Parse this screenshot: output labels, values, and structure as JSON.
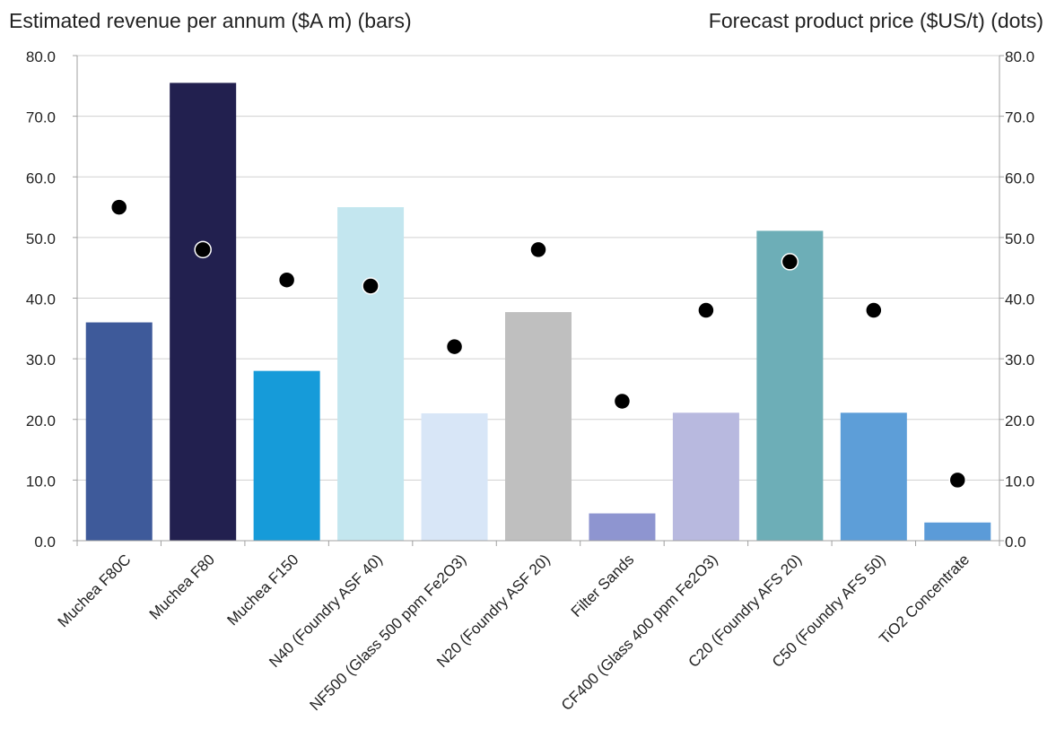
{
  "chart_data": {
    "type": "bar",
    "title_left": "Estimated revenue per annum ($A m) (bars)",
    "title_right": "Forecast product price ($US/t) (dots)",
    "categories": [
      "Muchea F80C",
      "Muchea F80",
      "Muchea F150",
      "N40 (Foundry ASF 40)",
      "NF500 (Glass 500 ppm Fe2O3)",
      "N20 (Foundry ASF 20)",
      "Filter Sands",
      "CF400 (Glass 400 ppm Fe2O3)",
      "C20 (Foundry AFS 20)",
      "C50 (Foundry AFS 50)",
      "TiO2 Concentrate"
    ],
    "series": [
      {
        "type": "bar",
        "values": [
          36,
          75.5,
          28,
          55,
          21,
          37.7,
          4.5,
          21.1,
          51.1,
          21.1,
          3
        ],
        "colors": [
          "#3e5a9a",
          "#22204f",
          "#169bd9",
          "#c3e6ef",
          "#d8e6f7",
          "#bfbfbf",
          "#8e95d0",
          "#b8b9df",
          "#6daeb7",
          "#5d9ed8",
          "#5b9bd8"
        ]
      },
      {
        "type": "scatter",
        "values": [
          55,
          48,
          43,
          42,
          32,
          48,
          23,
          38,
          46,
          38,
          10
        ],
        "color": "#000000"
      }
    ],
    "ylim_left": [
      0,
      80
    ],
    "ylim_right": [
      0,
      80
    ],
    "yticks": [
      "0.0",
      "10.0",
      "20.0",
      "30.0",
      "40.0",
      "50.0",
      "60.0",
      "70.0",
      "80.0"
    ],
    "grid": true,
    "legend": "none"
  }
}
